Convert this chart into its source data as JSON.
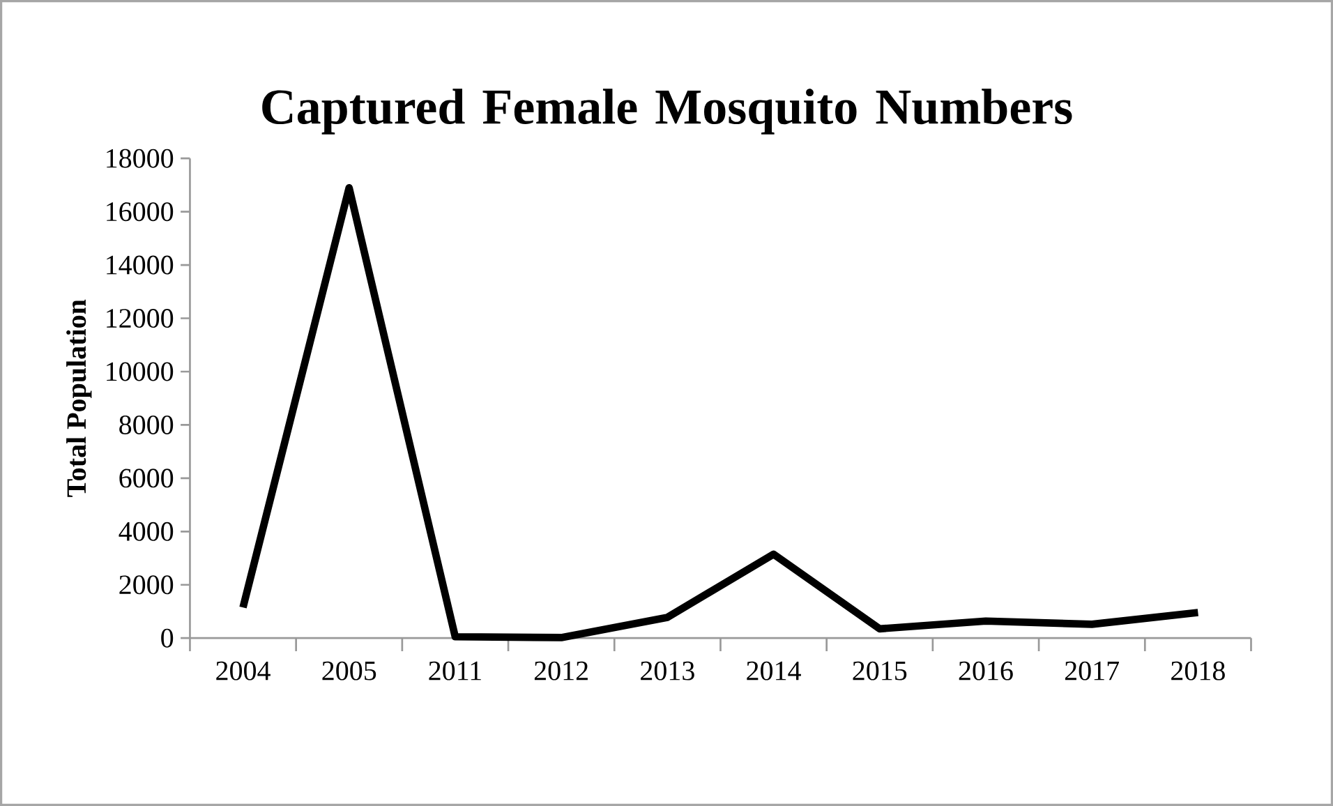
{
  "chart_data": {
    "type": "line",
    "title": "Captured Female Mosquito Numbers",
    "ylabel": "Total Population",
    "categories": [
      "2004",
      "2005",
      "2011",
      "2012",
      "2013",
      "2014",
      "2015",
      "2016",
      "2017",
      "2018"
    ],
    "series": [
      {
        "color": "#000000",
        "values": [
          1150,
          16900,
          50,
          20,
          780,
          3150,
          350,
          640,
          520,
          960
        ]
      }
    ],
    "ylim": [
      0,
      18000
    ],
    "yticks": [
      0,
      2000,
      4000,
      6000,
      8000,
      10000,
      12000,
      14000,
      16000,
      18000
    ],
    "grid": false,
    "legend": false,
    "marker": "none",
    "line_style": "solid"
  }
}
